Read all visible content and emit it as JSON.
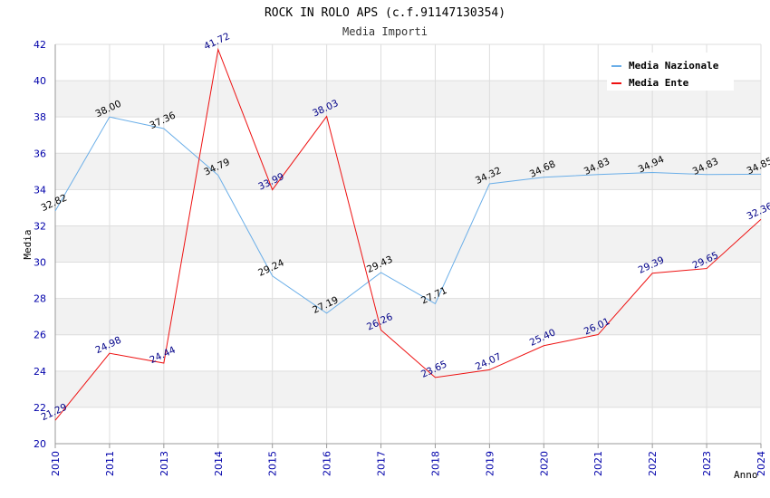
{
  "chart_data": {
    "type": "line",
    "title": "ROCK IN ROLO APS (c.f.91147130354)",
    "subtitle": "Media Importi",
    "xlabel": "Anno",
    "ylabel": "Media",
    "categories": [
      "2010",
      "2011",
      "2013",
      "2014",
      "2015",
      "2016",
      "2017",
      "2018",
      "2019",
      "2020",
      "2021",
      "2022",
      "2023",
      "2024"
    ],
    "ylim": [
      20,
      42
    ],
    "yticks": [
      20,
      22,
      24,
      26,
      28,
      30,
      32,
      34,
      36,
      38,
      40,
      42
    ],
    "grid": true,
    "legend_position": "top-right",
    "series": [
      {
        "name": "Media Nazionale",
        "color": "#6aaee8",
        "label_color": "#000000",
        "values": [
          32.82,
          38.0,
          37.36,
          34.79,
          29.24,
          27.19,
          29.43,
          27.71,
          34.32,
          34.68,
          34.83,
          34.94,
          34.83,
          34.85
        ],
        "labels": [
          "32.82",
          "38.00",
          "37.36",
          "34.79",
          "29.24",
          "27.19",
          "29.43",
          "27.71",
          "34.32",
          "34.68",
          "34.83",
          "34.94",
          "34.83",
          "34.85"
        ]
      },
      {
        "name": "Media Ente",
        "color": "#ee1111",
        "label_color": "#000088",
        "values": [
          21.29,
          24.98,
          24.44,
          41.72,
          33.99,
          38.03,
          26.26,
          23.65,
          24.07,
          25.4,
          26.01,
          29.39,
          29.65,
          32.36
        ],
        "labels": [
          "21.29",
          "24.98",
          "24.44",
          "41.72",
          "33.99",
          "38.03",
          "26.26",
          "23.65",
          "24.07",
          "25.40",
          "26.01",
          "29.39",
          "29.65",
          "32.36"
        ]
      }
    ]
  }
}
